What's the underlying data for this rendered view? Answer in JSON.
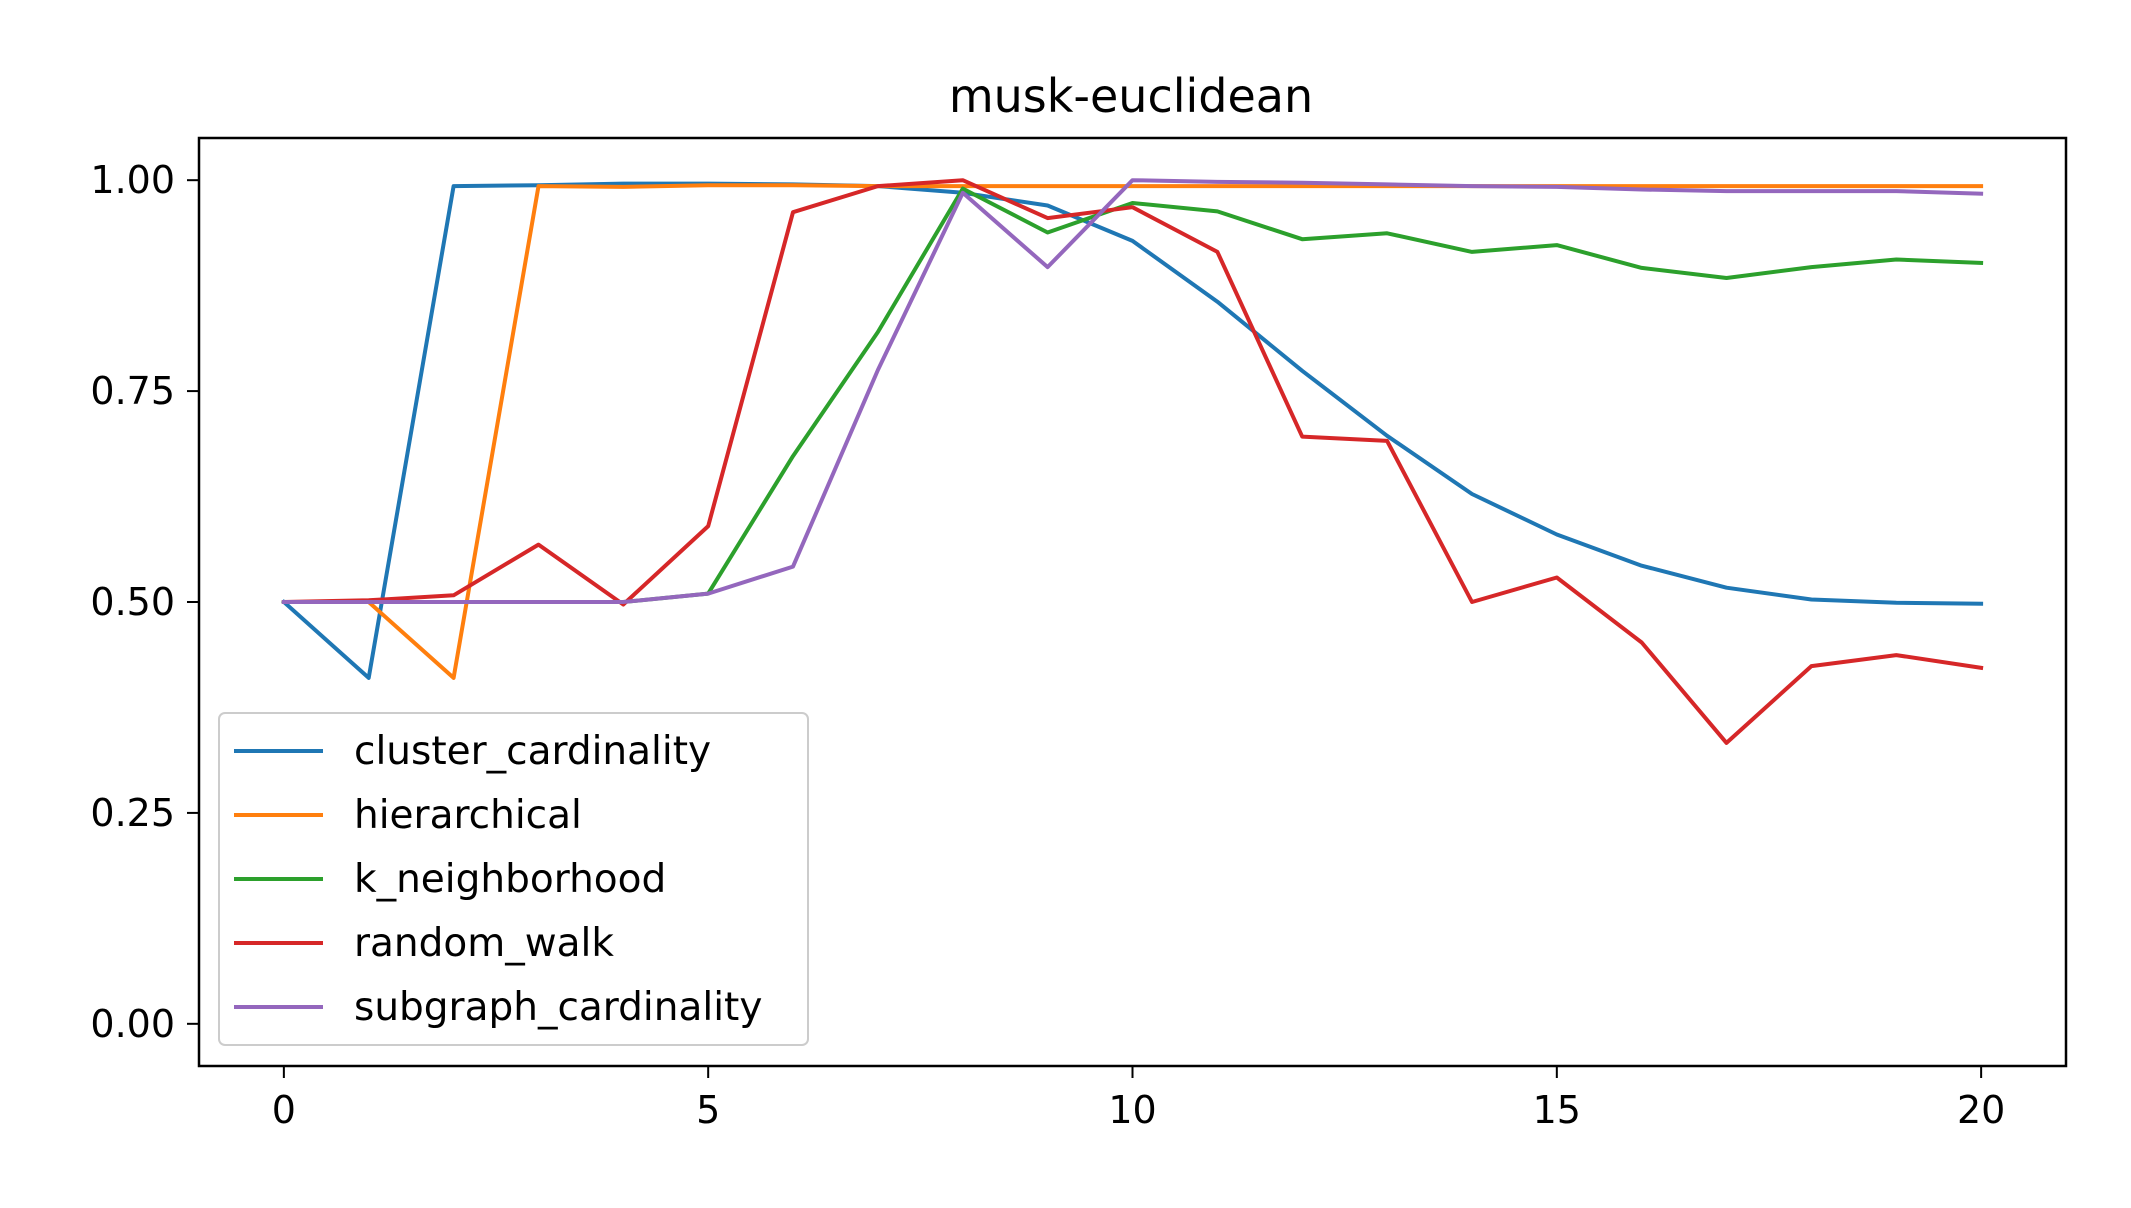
{
  "chart_data": {
    "type": "line",
    "title": "musk-euclidean",
    "xlabel": "",
    "ylabel": "",
    "xlim": [
      -1,
      21
    ],
    "ylim": [
      -0.05,
      1.05
    ],
    "xticks": [
      0,
      5,
      10,
      15,
      20
    ],
    "xtick_labels": [
      "0",
      "5",
      "10",
      "15",
      "20"
    ],
    "yticks": [
      0.0,
      0.25,
      0.5,
      0.75,
      1.0
    ],
    "ytick_labels": [
      "0.00",
      "0.25",
      "0.50",
      "0.75",
      "1.00"
    ],
    "grid": false,
    "legend_position": "lower-left",
    "x": [
      0,
      1,
      2,
      3,
      4,
      5,
      6,
      7,
      8,
      9,
      10,
      11,
      12,
      13,
      14,
      15,
      16,
      17,
      18,
      19,
      20
    ],
    "series": [
      {
        "name": "cluster_cardinality",
        "color": "#1f77b4",
        "values": [
          0.5,
          0.41,
          0.993,
          0.994,
          0.996,
          0.996,
          0.995,
          0.993,
          0.985,
          0.97,
          0.928,
          0.856,
          0.774,
          0.697,
          0.628,
          0.58,
          0.543,
          0.517,
          0.503,
          0.499,
          0.498
        ]
      },
      {
        "name": "hierarchical",
        "color": "#ff7f0e",
        "values": [
          0.5,
          0.5,
          0.41,
          0.993,
          0.992,
          0.994,
          0.994,
          0.993,
          0.993,
          0.993,
          0.993,
          0.993,
          0.993,
          0.993,
          0.993,
          0.993,
          0.993,
          0.993,
          0.993,
          0.993,
          0.993
        ]
      },
      {
        "name": "k_neighborhood",
        "color": "#2ca02c",
        "values": [
          0.5,
          0.5,
          0.5,
          0.5,
          0.5,
          0.51,
          0.673,
          0.82,
          0.99,
          0.938,
          0.973,
          0.963,
          0.93,
          0.937,
          0.915,
          0.923,
          0.896,
          0.884,
          0.897,
          0.906,
          0.902
        ]
      },
      {
        "name": "random_walk",
        "color": "#d62728",
        "values": [
          0.5,
          0.502,
          0.508,
          0.568,
          0.497,
          0.59,
          0.962,
          0.993,
          1.0,
          0.955,
          0.968,
          0.915,
          0.696,
          0.691,
          0.5,
          0.529,
          0.452,
          0.333,
          0.424,
          0.437,
          0.422
        ]
      },
      {
        "name": "subgraph_cardinality",
        "color": "#9467bd",
        "values": [
          0.5,
          0.5,
          0.5,
          0.5,
          0.5,
          0.51,
          0.542,
          0.775,
          0.985,
          0.897,
          1.0,
          0.998,
          0.997,
          0.995,
          0.993,
          0.992,
          0.989,
          0.987,
          0.987,
          0.987,
          0.984
        ]
      }
    ]
  }
}
